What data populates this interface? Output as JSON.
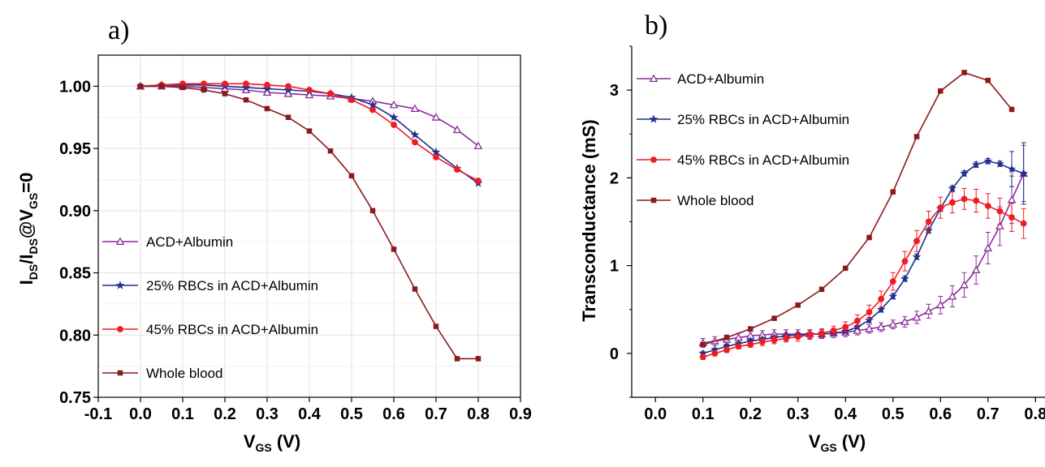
{
  "chart_data": [
    {
      "panel_label": "a)",
      "type": "line",
      "xlabel": "V",
      "xlabel_sub": "GS",
      "xlabel_unit": " (V)",
      "ylabel_parts": [
        "I",
        "DS",
        "/I",
        "DS",
        "@V",
        "GS",
        "=0"
      ],
      "xlim": [
        -0.1,
        0.9
      ],
      "ylim": [
        0.75,
        1.025
      ],
      "xticks": [
        "-0.1",
        "0.0",
        "0.1",
        "0.2",
        "0.3",
        "0.4",
        "0.5",
        "0.6",
        "0.7",
        "0.8",
        "0.9"
      ],
      "yticks": [
        "0.75",
        "0.80",
        "0.85",
        "0.90",
        "0.95",
        "1.00"
      ],
      "grid": true,
      "legend_position": "center-left",
      "x": [
        0.0,
        0.05,
        0.1,
        0.15,
        0.2,
        0.25,
        0.3,
        0.35,
        0.4,
        0.45,
        0.5,
        0.55,
        0.6,
        0.65,
        0.7,
        0.75,
        0.8
      ],
      "series": [
        {
          "name": "ACD+Albumin",
          "color": "#8b2e9b",
          "marker": "triangle",
          "values": [
            1.0,
            1.0,
            1.0,
            0.999,
            0.998,
            0.997,
            0.995,
            0.994,
            0.993,
            0.992,
            0.99,
            0.988,
            0.985,
            0.982,
            0.975,
            0.965,
            0.952
          ]
        },
        {
          "name": "25% RBCs in ACD+Albumin",
          "color": "#1f2f8f",
          "marker": "star",
          "values": [
            1.0,
            1.001,
            1.001,
            1.001,
            1.0,
            0.999,
            0.998,
            0.997,
            0.996,
            0.994,
            0.991,
            0.985,
            0.975,
            0.961,
            0.947,
            0.934,
            0.922
          ]
        },
        {
          "name": "45% RBCs in ACD+Albumin",
          "color": "#ee1c25",
          "marker": "circle",
          "values": [
            1.0,
            1.001,
            1.002,
            1.002,
            1.002,
            1.002,
            1.001,
            1.0,
            0.997,
            0.994,
            0.989,
            0.981,
            0.969,
            0.955,
            0.943,
            0.933,
            0.924
          ]
        },
        {
          "name": "Whole blood",
          "color": "#8b1a1a",
          "marker": "square",
          "values": [
            1.0,
            1.0,
            0.999,
            0.997,
            0.994,
            0.989,
            0.982,
            0.975,
            0.964,
            0.948,
            0.928,
            0.9,
            0.869,
            0.837,
            0.807,
            0.781,
            0.781
          ]
        }
      ]
    },
    {
      "panel_label": "b)",
      "type": "line",
      "xlabel": "V",
      "xlabel_sub": "GS",
      "xlabel_unit": " (V)",
      "ylabel": "Transconductance (mS)",
      "xlim": [
        -0.05,
        0.82
      ],
      "ylim": [
        -0.5,
        3.5
      ],
      "xticks": [
        "0.0",
        "0.1",
        "0.2",
        "0.3",
        "0.4",
        "0.5",
        "0.6",
        "0.7",
        "0.8"
      ],
      "yticks": [
        "0",
        "1",
        "2",
        "3"
      ],
      "grid": false,
      "legend_position": "top-left",
      "series": [
        {
          "name": "ACD+Albumin",
          "color": "#8b2e9b",
          "marker": "triangle",
          "error_bars": true,
          "x": [
            0.1,
            0.125,
            0.15,
            0.175,
            0.2,
            0.225,
            0.25,
            0.275,
            0.3,
            0.325,
            0.35,
            0.375,
            0.4,
            0.425,
            0.45,
            0.475,
            0.5,
            0.525,
            0.55,
            0.575,
            0.6,
            0.625,
            0.65,
            0.675,
            0.7,
            0.725,
            0.75,
            0.775
          ],
          "values": [
            0.12,
            0.14,
            0.16,
            0.18,
            0.2,
            0.21,
            0.22,
            0.22,
            0.22,
            0.22,
            0.22,
            0.23,
            0.24,
            0.26,
            0.28,
            0.3,
            0.33,
            0.36,
            0.41,
            0.48,
            0.55,
            0.65,
            0.78,
            0.95,
            1.2,
            1.45,
            1.75,
            2.05
          ],
          "errors": [
            0.05,
            0.05,
            0.05,
            0.05,
            0.05,
            0.05,
            0.05,
            0.05,
            0.05,
            0.05,
            0.05,
            0.05,
            0.05,
            0.05,
            0.05,
            0.05,
            0.05,
            0.06,
            0.07,
            0.08,
            0.1,
            0.12,
            0.14,
            0.16,
            0.18,
            0.22,
            0.27,
            0.32
          ]
        },
        {
          "name": "25% RBCs in ACD+Albumin",
          "color": "#1f2f8f",
          "marker": "star",
          "error_bars": true,
          "x": [
            0.1,
            0.125,
            0.15,
            0.175,
            0.2,
            0.225,
            0.25,
            0.275,
            0.3,
            0.325,
            0.35,
            0.375,
            0.4,
            0.425,
            0.45,
            0.475,
            0.5,
            0.525,
            0.55,
            0.575,
            0.6,
            0.625,
            0.65,
            0.675,
            0.7,
            0.725,
            0.75,
            0.775
          ],
          "values": [
            0.0,
            0.04,
            0.08,
            0.11,
            0.14,
            0.16,
            0.18,
            0.2,
            0.21,
            0.22,
            0.22,
            0.23,
            0.25,
            0.3,
            0.38,
            0.5,
            0.65,
            0.85,
            1.1,
            1.4,
            1.65,
            1.88,
            2.05,
            2.15,
            2.19,
            2.16,
            2.1,
            2.05
          ],
          "errors": [
            0.02,
            0.02,
            0.02,
            0.02,
            0.02,
            0.02,
            0.02,
            0.02,
            0.02,
            0.02,
            0.02,
            0.02,
            0.02,
            0.02,
            0.03,
            0.03,
            0.03,
            0.03,
            0.03,
            0.03,
            0.03,
            0.03,
            0.03,
            0.03,
            0.03,
            0.03,
            0.2,
            0.35
          ]
        },
        {
          "name": "45% RBCs in ACD+Albumin",
          "color": "#ee1c25",
          "marker": "circle",
          "error_bars": true,
          "x": [
            0.1,
            0.125,
            0.15,
            0.175,
            0.2,
            0.225,
            0.25,
            0.275,
            0.3,
            0.325,
            0.35,
            0.375,
            0.4,
            0.425,
            0.45,
            0.475,
            0.5,
            0.525,
            0.55,
            0.575,
            0.6,
            0.625,
            0.65,
            0.675,
            0.7,
            0.725,
            0.75,
            0.775
          ],
          "values": [
            -0.04,
            0.0,
            0.04,
            0.08,
            0.1,
            0.13,
            0.15,
            0.17,
            0.19,
            0.21,
            0.23,
            0.26,
            0.3,
            0.37,
            0.47,
            0.62,
            0.82,
            1.05,
            1.28,
            1.5,
            1.66,
            1.72,
            1.76,
            1.74,
            1.68,
            1.62,
            1.55,
            1.48
          ],
          "errors": [
            0.03,
            0.03,
            0.03,
            0.03,
            0.03,
            0.04,
            0.04,
            0.04,
            0.05,
            0.05,
            0.05,
            0.05,
            0.06,
            0.07,
            0.08,
            0.09,
            0.1,
            0.11,
            0.12,
            0.12,
            0.12,
            0.12,
            0.12,
            0.13,
            0.14,
            0.15,
            0.16,
            0.17
          ]
        },
        {
          "name": "Whole blood",
          "color": "#8b1a1a",
          "marker": "square",
          "error_bars": false,
          "x": [
            0.1,
            0.15,
            0.2,
            0.25,
            0.3,
            0.35,
            0.4,
            0.45,
            0.5,
            0.55,
            0.6,
            0.65,
            0.7,
            0.75
          ],
          "values": [
            0.1,
            0.18,
            0.28,
            0.4,
            0.55,
            0.73,
            0.97,
            1.32,
            1.84,
            2.47,
            2.99,
            3.2,
            3.11,
            2.78
          ]
        }
      ]
    }
  ]
}
